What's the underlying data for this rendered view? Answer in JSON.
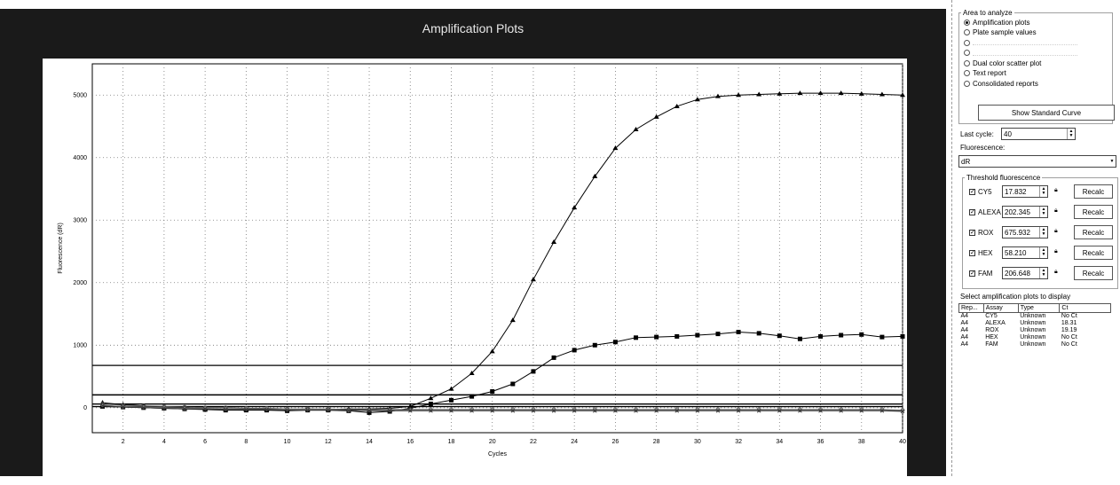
{
  "plot": {
    "title": "Amplification Plots"
  },
  "side": {
    "area_group_label": "Area to analyze",
    "area_options": [
      {
        "label": "Amplification plots",
        "selected": true,
        "disabled": false
      },
      {
        "label": "Plate sample values",
        "selected": false,
        "disabled": false
      },
      {
        "label": "",
        "selected": false,
        "disabled": true
      },
      {
        "label": "",
        "selected": false,
        "disabled": true
      },
      {
        "label": "Dual color scatter plot",
        "selected": false,
        "disabled": false
      },
      {
        "label": "Text report",
        "selected": false,
        "disabled": false
      },
      {
        "label": "Consolidated reports",
        "selected": false,
        "disabled": false
      }
    ],
    "show_standard_curve": "Show Standard Curve",
    "last_cycle_label": "Last cycle:",
    "last_cycle_value": "40",
    "fluorescence_label": "Fluorescence:",
    "fluorescence_value": "dR",
    "threshold_group_label": "Threshold fluorescence",
    "recalc_label": "Recalc",
    "thresholds": [
      {
        "dye": "CY5",
        "value": "17.832",
        "checked": true
      },
      {
        "dye": "ALEXA",
        "value": "202.345",
        "checked": true
      },
      {
        "dye": "ROX",
        "value": "675.932",
        "checked": true
      },
      {
        "dye": "HEX",
        "value": "58.210",
        "checked": true
      },
      {
        "dye": "FAM",
        "value": "206.648",
        "checked": true
      }
    ],
    "select_plots_label": "Select amplification plots to display",
    "table_headers": [
      "Rep...",
      "Assay",
      "Type",
      "Ct"
    ],
    "table_rows": [
      [
        "A4",
        "CY5",
        "Unknown",
        "No Ct"
      ],
      [
        "A4",
        "ALEXA",
        "Unknown",
        "18.31"
      ],
      [
        "A4",
        "ROX",
        "Unknown",
        "19.19"
      ],
      [
        "A4",
        "HEX",
        "Unknown",
        "No Ct"
      ],
      [
        "A4",
        "FAM",
        "Unknown",
        "No Ct"
      ]
    ]
  },
  "chart_data": {
    "type": "line",
    "title": "Amplification Plots",
    "xlabel": "Cycles",
    "ylabel": "Fluorescence (dR)",
    "xlim": [
      0.5,
      40
    ],
    "ylim": [
      -400,
      5500
    ],
    "x_ticks": [
      2,
      4,
      6,
      8,
      10,
      12,
      14,
      16,
      18,
      20,
      22,
      24,
      26,
      28,
      30,
      32,
      34,
      36,
      38,
      40
    ],
    "y_ticks": [
      0,
      1000,
      2000,
      3000,
      4000,
      5000
    ],
    "grid": true,
    "threshold_lines": [
      17.832,
      202.345,
      675.932,
      58.21,
      206.648
    ],
    "series": [
      {
        "marker": "triangle",
        "color": "#000000",
        "x": [
          1,
          2,
          3,
          4,
          5,
          6,
          7,
          8,
          9,
          10,
          11,
          12,
          13,
          14,
          15,
          16,
          17,
          18,
          19,
          20,
          21,
          22,
          23,
          24,
          25,
          26,
          27,
          28,
          29,
          30,
          31,
          32,
          33,
          34,
          35,
          36,
          37,
          38,
          39,
          40
        ],
        "y": [
          80,
          50,
          30,
          10,
          0,
          -20,
          -20,
          -30,
          -30,
          -30,
          -20,
          -30,
          -20,
          -20,
          -10,
          20,
          150,
          300,
          550,
          900,
          1400,
          2050,
          2650,
          3200,
          3700,
          4150,
          4450,
          4650,
          4820,
          4930,
          4980,
          5000,
          5010,
          5020,
          5030,
          5030,
          5030,
          5020,
          5010,
          5000
        ]
      },
      {
        "marker": "square",
        "color": "#000000",
        "x": [
          1,
          2,
          3,
          4,
          5,
          6,
          7,
          8,
          9,
          10,
          11,
          12,
          13,
          14,
          15,
          16,
          17,
          18,
          19,
          20,
          21,
          22,
          23,
          24,
          25,
          26,
          27,
          28,
          29,
          30,
          31,
          32,
          33,
          34,
          35,
          36,
          37,
          38,
          39,
          40
        ],
        "y": [
          20,
          10,
          0,
          -10,
          -20,
          -30,
          -40,
          -40,
          -40,
          -50,
          -40,
          -40,
          -50,
          -80,
          -60,
          -10,
          60,
          120,
          180,
          260,
          380,
          580,
          800,
          920,
          1000,
          1050,
          1120,
          1130,
          1140,
          1160,
          1180,
          1210,
          1190,
          1150,
          1100,
          1140,
          1160,
          1170,
          1130,
          1140
        ]
      },
      {
        "marker": "circle",
        "color": "#555555",
        "x": [
          1,
          2,
          3,
          4,
          5,
          6,
          7,
          8,
          9,
          10,
          11,
          12,
          13,
          14,
          15,
          16,
          17,
          18,
          19,
          20,
          21,
          22,
          23,
          24,
          25,
          26,
          27,
          28,
          29,
          30,
          31,
          32,
          33,
          34,
          35,
          36,
          37,
          38,
          39,
          40
        ],
        "y": [
          60,
          40,
          30,
          20,
          10,
          0,
          0,
          -10,
          -10,
          -20,
          -20,
          -20,
          -30,
          -30,
          -30,
          -30,
          -30,
          -30,
          -30,
          -30,
          -30,
          -30,
          -30,
          -30,
          -30,
          -30,
          -30,
          -30,
          -30,
          -30,
          -30,
          -30,
          -30,
          -30,
          -30,
          -30,
          -30,
          -30,
          -30,
          -40
        ]
      },
      {
        "marker": "diamond",
        "color": "#777777",
        "x": [
          1,
          2,
          3,
          4,
          5,
          6,
          7,
          8,
          9,
          10,
          11,
          12,
          13,
          14,
          15,
          16,
          17,
          18,
          19,
          20,
          21,
          22,
          23,
          24,
          25,
          26,
          27,
          28,
          29,
          30,
          31,
          32,
          33,
          34,
          35,
          36,
          37,
          38,
          39,
          40
        ],
        "y": [
          40,
          20,
          10,
          0,
          -10,
          -10,
          -20,
          -20,
          -20,
          -30,
          -30,
          -30,
          -40,
          -40,
          -40,
          -40,
          -40,
          -40,
          -40,
          -40,
          -40,
          -40,
          -40,
          -40,
          -40,
          -40,
          -40,
          -40,
          -40,
          -40,
          -40,
          -40,
          -40,
          -40,
          -40,
          -40,
          -40,
          -40,
          -40,
          -50
        ]
      },
      {
        "marker": "x",
        "color": "#333333",
        "x": [
          1,
          2,
          3,
          4,
          5,
          6,
          7,
          8,
          9,
          10,
          11,
          12,
          13,
          14,
          15,
          16,
          17,
          18,
          19,
          20,
          21,
          22,
          23,
          24,
          25,
          26,
          27,
          28,
          29,
          30,
          31,
          32,
          33,
          34,
          35,
          36,
          37,
          38,
          39,
          40
        ],
        "y": [
          30,
          10,
          0,
          -10,
          -20,
          -20,
          -30,
          -30,
          -30,
          -40,
          -40,
          -40,
          -40,
          -50,
          -50,
          -50,
          -50,
          -50,
          -50,
          -50,
          -50,
          -50,
          -50,
          -50,
          -50,
          -50,
          -50,
          -50,
          -50,
          -50,
          -50,
          -50,
          -50,
          -50,
          -50,
          -50,
          -50,
          -50,
          -50,
          -60
        ]
      }
    ]
  }
}
